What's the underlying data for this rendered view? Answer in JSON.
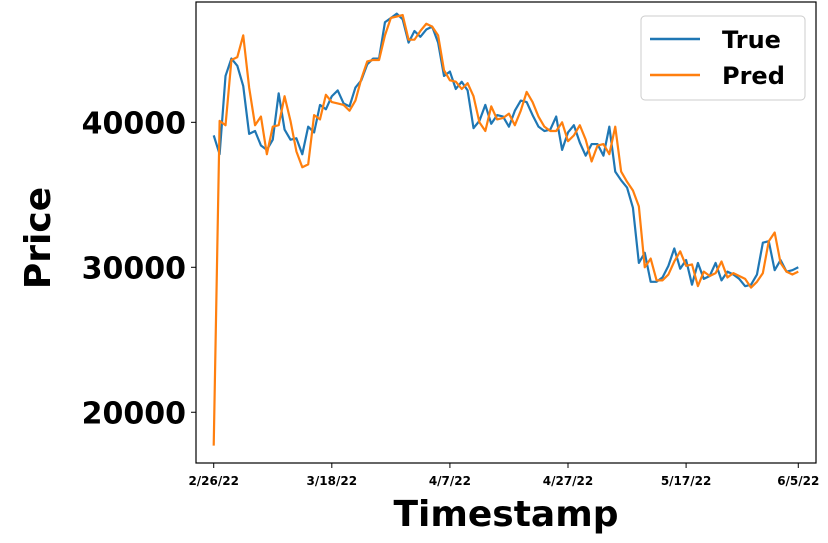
{
  "chart_data": {
    "type": "line",
    "xlabel": "Timestamp",
    "ylabel": "Price",
    "x_ticks": [
      "2/26/22",
      "3/18/22",
      "4/7/22",
      "4/27/22",
      "5/17/22",
      "6/5/22"
    ],
    "y_ticks": [
      20000,
      30000,
      40000
    ],
    "xlim": [
      "2022-02-23",
      "2022-06-08"
    ],
    "ylim": [
      16500,
      48300
    ],
    "grid": false,
    "legend_position": "top-right",
    "colors": {
      "True": "#1f77b4",
      "Pred": "#ff7f0e"
    },
    "series": [
      {
        "name": "True",
        "points": [
          [
            "2022-02-26",
            39100
          ],
          [
            "2022-02-27",
            37800
          ],
          [
            "2022-02-28",
            43200
          ],
          [
            "2022-03-01",
            44400
          ],
          [
            "2022-03-02",
            43900
          ],
          [
            "2022-03-03",
            42500
          ],
          [
            "2022-03-04",
            39200
          ],
          [
            "2022-03-05",
            39400
          ],
          [
            "2022-03-06",
            38400
          ],
          [
            "2022-03-07",
            38100
          ],
          [
            "2022-03-08",
            38800
          ],
          [
            "2022-03-09",
            42000
          ],
          [
            "2022-03-10",
            39500
          ],
          [
            "2022-03-11",
            38800
          ],
          [
            "2022-03-12",
            38900
          ],
          [
            "2022-03-13",
            37800
          ],
          [
            "2022-03-14",
            39700
          ],
          [
            "2022-03-15",
            39300
          ],
          [
            "2022-03-16",
            41200
          ],
          [
            "2022-03-17",
            40900
          ],
          [
            "2022-03-18",
            41800
          ],
          [
            "2022-03-19",
            42200
          ],
          [
            "2022-03-20",
            41300
          ],
          [
            "2022-03-21",
            41100
          ],
          [
            "2022-03-22",
            42400
          ],
          [
            "2022-03-23",
            42900
          ],
          [
            "2022-03-24",
            44000
          ],
          [
            "2022-03-25",
            44400
          ],
          [
            "2022-03-26",
            44400
          ],
          [
            "2022-03-27",
            46900
          ],
          [
            "2022-03-28",
            47200
          ],
          [
            "2022-03-29",
            47500
          ],
          [
            "2022-03-30",
            47100
          ],
          [
            "2022-03-31",
            45500
          ],
          [
            "2022-04-01",
            46300
          ],
          [
            "2022-04-02",
            45900
          ],
          [
            "2022-04-03",
            46400
          ],
          [
            "2022-04-04",
            46600
          ],
          [
            "2022-04-05",
            45500
          ],
          [
            "2022-04-06",
            43200
          ],
          [
            "2022-04-07",
            43500
          ],
          [
            "2022-04-08",
            42300
          ],
          [
            "2022-04-09",
            42800
          ],
          [
            "2022-04-10",
            42200
          ],
          [
            "2022-04-11",
            39600
          ],
          [
            "2022-04-12",
            40100
          ],
          [
            "2022-04-13",
            41200
          ],
          [
            "2022-04-14",
            39900
          ],
          [
            "2022-04-15",
            40500
          ],
          [
            "2022-04-16",
            40400
          ],
          [
            "2022-04-17",
            39700
          ],
          [
            "2022-04-18",
            40800
          ],
          [
            "2022-04-19",
            41500
          ],
          [
            "2022-04-20",
            41400
          ],
          [
            "2022-04-21",
            40500
          ],
          [
            "2022-04-22",
            39700
          ],
          [
            "2022-04-23",
            39400
          ],
          [
            "2022-04-24",
            39500
          ],
          [
            "2022-04-25",
            40400
          ],
          [
            "2022-04-26",
            38100
          ],
          [
            "2022-04-27",
            39300
          ],
          [
            "2022-04-28",
            39800
          ],
          [
            "2022-04-29",
            38600
          ],
          [
            "2022-04-30",
            37700
          ],
          [
            "2022-05-01",
            38500
          ],
          [
            "2022-05-02",
            38500
          ],
          [
            "2022-05-03",
            37700
          ],
          [
            "2022-05-04",
            39700
          ],
          [
            "2022-05-05",
            36600
          ],
          [
            "2022-05-06",
            36000
          ],
          [
            "2022-05-07",
            35500
          ],
          [
            "2022-05-08",
            34100
          ],
          [
            "2022-05-09",
            30300
          ],
          [
            "2022-05-10",
            31000
          ],
          [
            "2022-05-11",
            29000
          ],
          [
            "2022-05-12",
            29000
          ],
          [
            "2022-05-13",
            29300
          ],
          [
            "2022-05-14",
            30100
          ],
          [
            "2022-05-15",
            31300
          ],
          [
            "2022-05-16",
            29900
          ],
          [
            "2022-05-17",
            30500
          ],
          [
            "2022-05-18",
            28800
          ],
          [
            "2022-05-19",
            30300
          ],
          [
            "2022-05-20",
            29200
          ],
          [
            "2022-05-21",
            29400
          ],
          [
            "2022-05-22",
            30300
          ],
          [
            "2022-05-23",
            29100
          ],
          [
            "2022-05-24",
            29700
          ],
          [
            "2022-05-25",
            29500
          ],
          [
            "2022-05-26",
            29200
          ],
          [
            "2022-05-27",
            28700
          ],
          [
            "2022-05-28",
            28800
          ],
          [
            "2022-05-29",
            29500
          ],
          [
            "2022-05-30",
            31700
          ],
          [
            "2022-05-31",
            31800
          ],
          [
            "2022-06-01",
            29800
          ],
          [
            "2022-06-02",
            30500
          ],
          [
            "2022-06-03",
            29700
          ],
          [
            "2022-06-04",
            29800
          ],
          [
            "2022-06-05",
            30000
          ]
        ]
      },
      {
        "name": "Pred",
        "points": [
          [
            "2022-02-26",
            17700
          ],
          [
            "2022-02-27",
            40100
          ],
          [
            "2022-02-28",
            39800
          ],
          [
            "2022-03-01",
            44300
          ],
          [
            "2022-03-02",
            44500
          ],
          [
            "2022-03-03",
            46000
          ],
          [
            "2022-03-04",
            42400
          ],
          [
            "2022-03-05",
            39800
          ],
          [
            "2022-03-06",
            40400
          ],
          [
            "2022-03-07",
            37800
          ],
          [
            "2022-03-08",
            39700
          ],
          [
            "2022-03-09",
            39800
          ],
          [
            "2022-03-10",
            41800
          ],
          [
            "2022-03-11",
            40100
          ],
          [
            "2022-03-12",
            38000
          ],
          [
            "2022-03-13",
            36900
          ],
          [
            "2022-03-14",
            37100
          ],
          [
            "2022-03-15",
            40500
          ],
          [
            "2022-03-16",
            40200
          ],
          [
            "2022-03-17",
            41900
          ],
          [
            "2022-03-18",
            41400
          ],
          [
            "2022-03-19",
            41300
          ],
          [
            "2022-03-20",
            41200
          ],
          [
            "2022-03-21",
            40800
          ],
          [
            "2022-03-22",
            41500
          ],
          [
            "2022-03-23",
            43000
          ],
          [
            "2022-03-24",
            44200
          ],
          [
            "2022-03-25",
            44300
          ],
          [
            "2022-03-26",
            44300
          ],
          [
            "2022-03-27",
            46000
          ],
          [
            "2022-03-28",
            47200
          ],
          [
            "2022-03-29",
            47300
          ],
          [
            "2022-03-30",
            47400
          ],
          [
            "2022-03-31",
            45700
          ],
          [
            "2022-04-01",
            45700
          ],
          [
            "2022-04-02",
            46300
          ],
          [
            "2022-04-03",
            46800
          ],
          [
            "2022-04-04",
            46600
          ],
          [
            "2022-04-05",
            46000
          ],
          [
            "2022-04-06",
            43600
          ],
          [
            "2022-04-07",
            42900
          ],
          [
            "2022-04-08",
            42800
          ],
          [
            "2022-04-09",
            42300
          ],
          [
            "2022-04-10",
            42700
          ],
          [
            "2022-04-11",
            41800
          ],
          [
            "2022-04-12",
            40000
          ],
          [
            "2022-04-13",
            39400
          ],
          [
            "2022-04-14",
            41100
          ],
          [
            "2022-04-15",
            40200
          ],
          [
            "2022-04-16",
            40300
          ],
          [
            "2022-04-17",
            40600
          ],
          [
            "2022-04-18",
            39800
          ],
          [
            "2022-04-19",
            40800
          ],
          [
            "2022-04-20",
            42100
          ],
          [
            "2022-04-21",
            41400
          ],
          [
            "2022-04-22",
            40400
          ],
          [
            "2022-04-23",
            39700
          ],
          [
            "2022-04-24",
            39400
          ],
          [
            "2022-04-25",
            39400
          ],
          [
            "2022-04-26",
            40000
          ],
          [
            "2022-04-27",
            38700
          ],
          [
            "2022-04-28",
            39100
          ],
          [
            "2022-04-29",
            39800
          ],
          [
            "2022-04-30",
            38800
          ],
          [
            "2022-05-01",
            37300
          ],
          [
            "2022-05-02",
            38400
          ],
          [
            "2022-05-03",
            38500
          ],
          [
            "2022-05-04",
            37800
          ],
          [
            "2022-05-05",
            39700
          ],
          [
            "2022-05-06",
            36600
          ],
          [
            "2022-05-07",
            35900
          ],
          [
            "2022-05-08",
            35300
          ],
          [
            "2022-05-09",
            34200
          ],
          [
            "2022-05-10",
            30000
          ],
          [
            "2022-05-11",
            30600
          ],
          [
            "2022-05-12",
            29100
          ],
          [
            "2022-05-13",
            29100
          ],
          [
            "2022-05-14",
            29500
          ],
          [
            "2022-05-15",
            30400
          ],
          [
            "2022-05-16",
            31100
          ],
          [
            "2022-05-17",
            30100
          ],
          [
            "2022-05-18",
            30200
          ],
          [
            "2022-05-19",
            28700
          ],
          [
            "2022-05-20",
            29700
          ],
          [
            "2022-05-21",
            29400
          ],
          [
            "2022-05-22",
            29600
          ],
          [
            "2022-05-23",
            30400
          ],
          [
            "2022-05-24",
            29300
          ],
          [
            "2022-05-25",
            29600
          ],
          [
            "2022-05-26",
            29400
          ],
          [
            "2022-05-27",
            29200
          ],
          [
            "2022-05-28",
            28600
          ],
          [
            "2022-05-29",
            29000
          ],
          [
            "2022-05-30",
            29600
          ],
          [
            "2022-05-31",
            31800
          ],
          [
            "2022-06-01",
            32400
          ],
          [
            "2022-06-02",
            30300
          ],
          [
            "2022-06-03",
            29700
          ],
          [
            "2022-06-04",
            29500
          ],
          [
            "2022-06-05",
            29700
          ]
        ]
      }
    ]
  }
}
